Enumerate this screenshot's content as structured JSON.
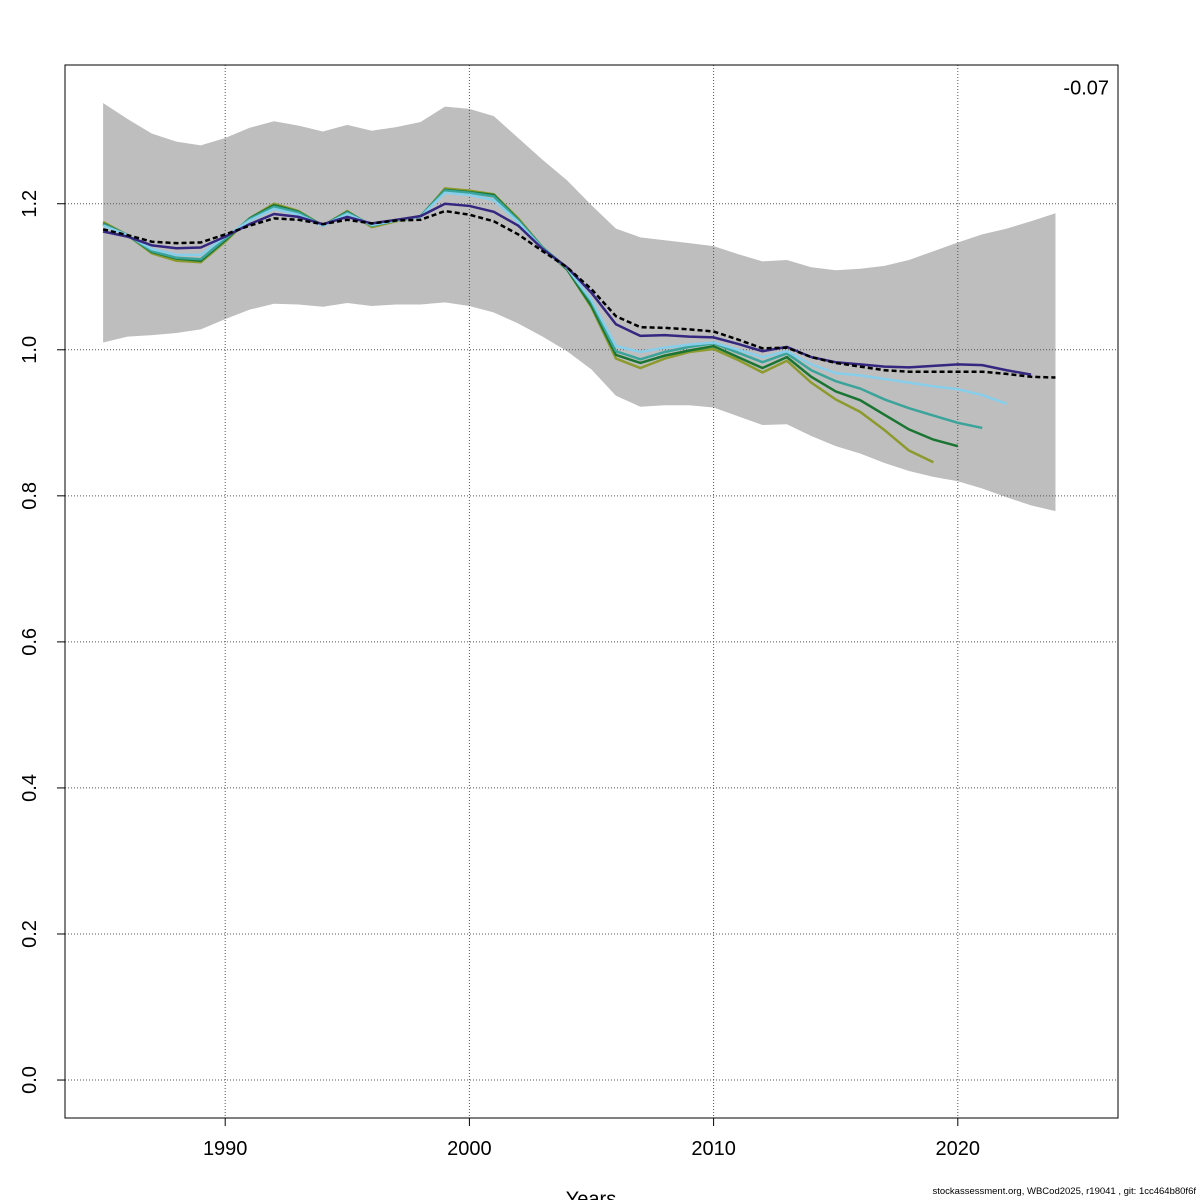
{
  "chart_data": {
    "type": "line",
    "annotation": "-0.07",
    "x_label": "Years",
    "footer": "stockassessment.org, WBCod2025, r19041 , git: 1cc464b80f6f",
    "x": [
      1985,
      1986,
      1987,
      1988,
      1989,
      1990,
      1991,
      1992,
      1993,
      1994,
      1995,
      1996,
      1997,
      1998,
      1999,
      2000,
      2001,
      2002,
      2003,
      2004,
      2005,
      2006,
      2007,
      2008,
      2009,
      2010,
      2011,
      2012,
      2013,
      2014,
      2015,
      2016,
      2017,
      2018,
      2019,
      2020,
      2021,
      2022,
      2023,
      2024
    ],
    "band": {
      "color": "#bebebe",
      "upper": [
        1.338,
        1.316,
        1.296,
        1.285,
        1.28,
        1.29,
        1.304,
        1.313,
        1.307,
        1.299,
        1.308,
        1.3,
        1.305,
        1.312,
        1.333,
        1.33,
        1.32,
        1.29,
        1.26,
        1.232,
        1.198,
        1.166,
        1.154,
        1.15,
        1.146,
        1.142,
        1.131,
        1.121,
        1.123,
        1.113,
        1.109,
        1.111,
        1.115,
        1.123,
        1.135,
        1.147,
        1.158,
        1.166,
        1.176,
        1.187
      ],
      "lower": [
        1.01,
        1.018,
        1.02,
        1.023,
        1.028,
        1.042,
        1.055,
        1.063,
        1.062,
        1.059,
        1.064,
        1.06,
        1.062,
        1.062,
        1.065,
        1.06,
        1.051,
        1.036,
        1.018,
        0.998,
        0.973,
        0.937,
        0.922,
        0.924,
        0.924,
        0.921,
        0.909,
        0.897,
        0.898,
        0.882,
        0.868,
        0.858,
        0.845,
        0.834,
        0.826,
        0.82,
        0.81,
        0.798,
        0.787,
        0.779
      ]
    },
    "series": [
      {
        "color": "#8d9a2e",
        "values": [
          1.175,
          1.157,
          1.132,
          1.122,
          1.12,
          1.148,
          1.18,
          1.2,
          1.19,
          1.17,
          1.19,
          1.168,
          1.176,
          1.182,
          1.221,
          1.218,
          1.213,
          1.18,
          1.14,
          1.11,
          1.058,
          0.988,
          0.975,
          0.988,
          0.997,
          1.001,
          0.986,
          0.969,
          0.985,
          0.955,
          0.932,
          0.915,
          0.89,
          0.862,
          0.846,
          null,
          null,
          null,
          null,
          null
        ]
      },
      {
        "color": "#1a7532",
        "values": [
          1.173,
          1.157,
          1.134,
          1.125,
          1.122,
          1.15,
          1.18,
          1.198,
          1.189,
          1.17,
          1.189,
          1.17,
          1.177,
          1.183,
          1.219,
          1.216,
          1.212,
          1.178,
          1.14,
          1.11,
          1.06,
          0.993,
          0.982,
          0.992,
          0.999,
          1.005,
          0.99,
          0.975,
          0.99,
          0.963,
          0.943,
          0.931,
          0.911,
          0.891,
          0.877,
          0.868,
          null,
          null,
          null,
          null
        ]
      },
      {
        "color": "#3aa39a",
        "values": [
          1.172,
          1.157,
          1.135,
          1.126,
          1.124,
          1.152,
          1.179,
          1.196,
          1.188,
          1.17,
          1.188,
          1.17,
          1.177,
          1.183,
          1.218,
          1.215,
          1.21,
          1.177,
          1.14,
          1.112,
          1.065,
          0.998,
          0.987,
          0.997,
          1.004,
          1.009,
          0.996,
          0.983,
          0.995,
          0.972,
          0.957,
          0.947,
          0.932,
          0.92,
          0.91,
          0.9,
          0.893,
          null,
          null,
          null
        ]
      },
      {
        "color": "#87ceeb",
        "values": [
          1.17,
          1.157,
          1.138,
          1.13,
          1.13,
          1.155,
          1.177,
          1.193,
          1.185,
          1.17,
          1.186,
          1.171,
          1.177,
          1.182,
          1.215,
          1.212,
          1.205,
          1.175,
          1.138,
          1.112,
          1.068,
          1.005,
          0.997,
          1.003,
          1.007,
          1.01,
          1.0,
          0.99,
          0.998,
          0.98,
          0.968,
          0.965,
          0.96,
          0.955,
          0.95,
          0.946,
          0.938,
          0.926,
          null,
          null
        ]
      },
      {
        "color": "#35267f",
        "values": [
          1.162,
          1.155,
          1.143,
          1.139,
          1.14,
          1.155,
          1.172,
          1.186,
          1.182,
          1.172,
          1.182,
          1.173,
          1.178,
          1.183,
          1.2,
          1.197,
          1.189,
          1.17,
          1.138,
          1.113,
          1.078,
          1.035,
          1.019,
          1.02,
          1.018,
          1.017,
          1.008,
          0.998,
          1.004,
          0.99,
          0.983,
          0.98,
          0.977,
          0.976,
          0.978,
          0.98,
          0.979,
          0.972,
          0.966,
          null
        ]
      },
      {
        "color": "#000000",
        "dashed": true,
        "values": [
          1.165,
          1.157,
          1.148,
          1.146,
          1.147,
          1.158,
          1.17,
          1.18,
          1.178,
          1.172,
          1.178,
          1.173,
          1.177,
          1.178,
          1.19,
          1.185,
          1.176,
          1.158,
          1.135,
          1.113,
          1.083,
          1.046,
          1.031,
          1.03,
          1.028,
          1.025,
          1.014,
          1.002,
          1.003,
          0.99,
          0.982,
          0.977,
          0.972,
          0.97,
          0.97,
          0.97,
          0.97,
          0.967,
          0.963,
          0.962
        ]
      }
    ],
    "xlim": [
      1983.44,
      2026.56
    ],
    "ylim": [
      -0.052,
      1.39
    ],
    "xticks": [
      1990,
      2000,
      2010,
      2020
    ],
    "yticks": [
      {
        "value": 0,
        "label": "0.0"
      },
      0.2,
      0.4,
      0.6,
      0.8,
      {
        "value": 1,
        "label": "1.0"
      },
      1.2
    ],
    "grid": true
  }
}
